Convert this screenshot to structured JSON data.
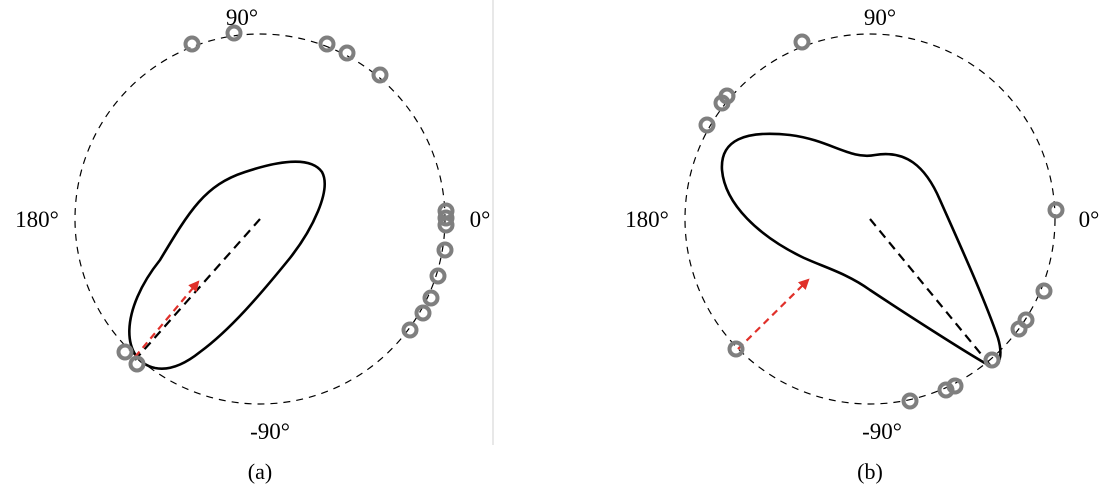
{
  "panels": [
    {
      "caption": "(a)",
      "axis_labels": {
        "top": "90°",
        "left": "180°",
        "right": "0°",
        "bottom": "-90°"
      }
    },
    {
      "caption": "(b)",
      "axis_labels": {
        "top": "90°",
        "left": "180°",
        "right": "0°",
        "bottom": "-90°"
      }
    }
  ],
  "colors": {
    "circle": "#000000",
    "shape": "#000000",
    "markers": "#7f7f7f",
    "red_arrow": "#e0302a",
    "divider": "#d0d0d0"
  }
}
